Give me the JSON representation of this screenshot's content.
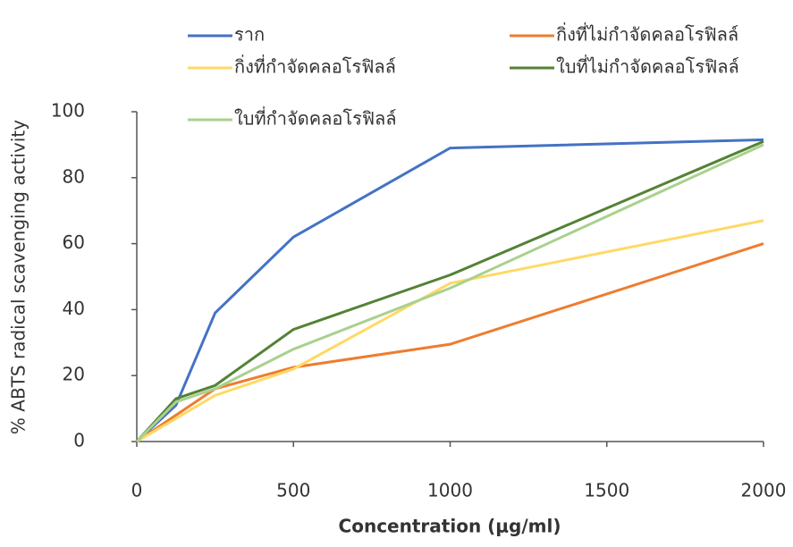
{
  "chart_data": {
    "type": "line",
    "x_label": "Concentration (μg/ml)",
    "y_label": "% ABTS radical scavenging activity",
    "x": [
      0,
      125,
      250,
      500,
      1000,
      2000
    ],
    "xlim": [
      0,
      2000
    ],
    "xticks": [
      0,
      500,
      1000,
      1500,
      2000
    ],
    "ylim": [
      0,
      100
    ],
    "yticks": [
      0,
      20,
      40,
      60,
      80,
      100
    ],
    "series": [
      {
        "name": "ราก",
        "color": "#4472c4",
        "values": [
          0,
          11,
          39,
          62,
          89,
          91.5
        ]
      },
      {
        "name": "กิ่งที่ไม่กำจัดคลอโรฟิลล์",
        "color": "#ed7d31",
        "values": [
          0,
          8,
          16,
          22.5,
          29.5,
          60
        ]
      },
      {
        "name": "กิ่งที่กำจัดคลอโรฟิลล์",
        "color": "#ffd966",
        "values": [
          0,
          7,
          14,
          22,
          48,
          67
        ]
      },
      {
        "name": "ใบที่ไม่กำจัดคลอโรฟิลล์",
        "color": "#548235",
        "values": [
          0,
          13,
          17,
          34,
          50.5,
          91
        ]
      },
      {
        "name": "ใบที่กำจัดคลอโรฟิลล์",
        "color": "#a9d18e",
        "values": [
          0,
          12,
          16,
          28,
          46.5,
          90
        ]
      }
    ]
  }
}
